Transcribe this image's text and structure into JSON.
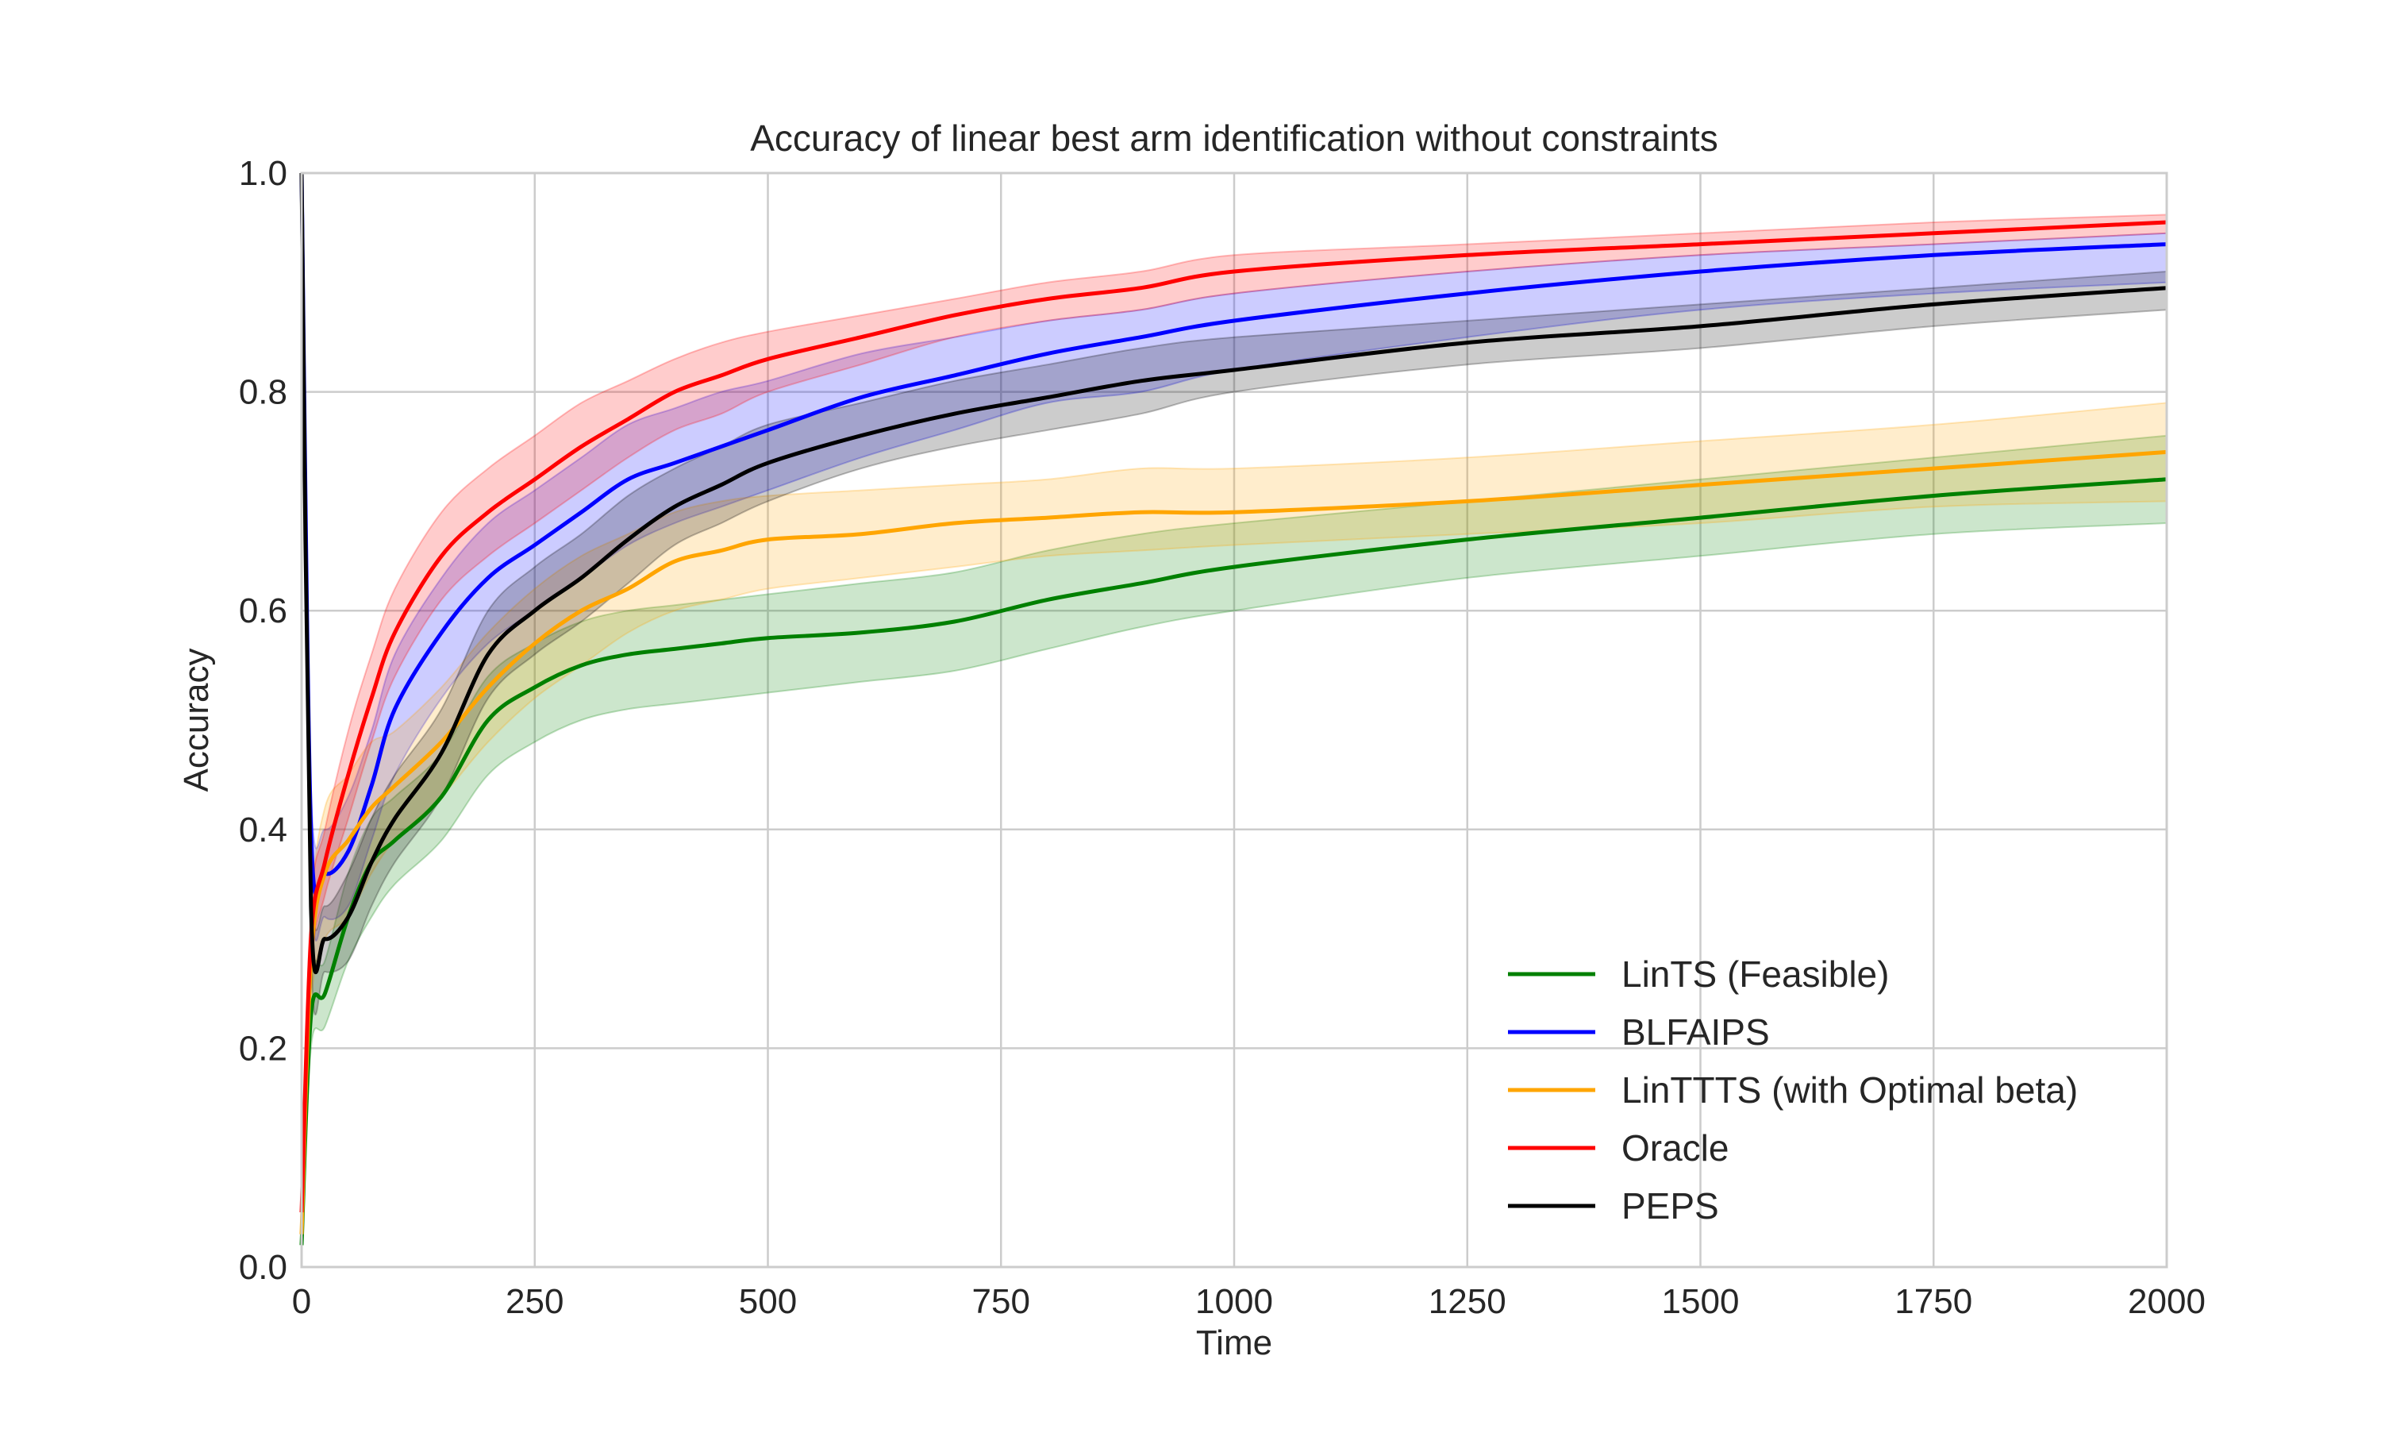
{
  "chart_data": {
    "type": "line",
    "title": "Accuracy of linear best arm identification without constraints",
    "xlabel": "Time",
    "ylabel": "Accuracy",
    "xlim": [
      0,
      2000
    ],
    "ylim": [
      0,
      1.0
    ],
    "xticks": [
      0,
      250,
      500,
      750,
      1000,
      1250,
      1500,
      1750,
      2000
    ],
    "xtick_labels": [
      "0",
      "250",
      "500",
      "750",
      "1000",
      "1250",
      "1500",
      "1750",
      "2000"
    ],
    "yticks": [
      0.0,
      0.2,
      0.4,
      0.6,
      0.8,
      1.0
    ],
    "ytick_labels": [
      "0.0",
      "0.2",
      "0.4",
      "0.6",
      "0.8",
      "1.0"
    ],
    "grid": true,
    "legend_position": "lower-right",
    "x": [
      0,
      10,
      25,
      50,
      75,
      100,
      150,
      200,
      250,
      300,
      350,
      400,
      450,
      500,
      600,
      700,
      800,
      900,
      1000,
      1250,
      1500,
      1750,
      2000
    ],
    "series": [
      {
        "name": "LinTS (Feasible)",
        "color": "#008000",
        "values": [
          0.02,
          0.23,
          0.25,
          0.32,
          0.37,
          0.39,
          0.43,
          0.5,
          0.53,
          0.55,
          0.56,
          0.565,
          0.57,
          0.575,
          0.58,
          0.59,
          0.61,
          0.625,
          0.64,
          0.665,
          0.685,
          0.705,
          0.72
        ],
        "lower": [
          0.01,
          0.2,
          0.22,
          0.28,
          0.32,
          0.35,
          0.39,
          0.45,
          0.48,
          0.5,
          0.51,
          0.515,
          0.52,
          0.525,
          0.535,
          0.545,
          0.565,
          0.585,
          0.6,
          0.63,
          0.65,
          0.67,
          0.68
        ],
        "upper": [
          0.03,
          0.26,
          0.28,
          0.36,
          0.41,
          0.43,
          0.47,
          0.54,
          0.57,
          0.59,
          0.6,
          0.605,
          0.61,
          0.615,
          0.625,
          0.635,
          0.655,
          0.67,
          0.68,
          0.7,
          0.72,
          0.74,
          0.76
        ]
      },
      {
        "name": "BLFAIPS",
        "color": "#0000ff",
        "values": [
          1.0,
          0.4,
          0.36,
          0.38,
          0.44,
          0.51,
          0.58,
          0.63,
          0.66,
          0.69,
          0.72,
          0.735,
          0.75,
          0.765,
          0.795,
          0.815,
          0.835,
          0.85,
          0.865,
          0.89,
          0.91,
          0.925,
          0.935
        ],
        "lower": [
          1.0,
          0.36,
          0.32,
          0.33,
          0.39,
          0.45,
          0.52,
          0.57,
          0.6,
          0.63,
          0.66,
          0.68,
          0.695,
          0.71,
          0.74,
          0.765,
          0.79,
          0.8,
          0.82,
          0.85,
          0.875,
          0.89,
          0.9
        ],
        "upper": [
          1.0,
          0.44,
          0.4,
          0.43,
          0.49,
          0.56,
          0.63,
          0.68,
          0.71,
          0.74,
          0.77,
          0.785,
          0.8,
          0.81,
          0.835,
          0.85,
          0.865,
          0.875,
          0.89,
          0.91,
          0.925,
          0.935,
          0.945
        ]
      },
      {
        "name": "LinTTTS (with Optimal beta)",
        "color": "#ffa500",
        "values": [
          0.03,
          0.28,
          0.36,
          0.39,
          0.42,
          0.44,
          0.48,
          0.53,
          0.57,
          0.6,
          0.62,
          0.645,
          0.655,
          0.665,
          0.67,
          0.68,
          0.685,
          0.69,
          0.69,
          0.7,
          0.715,
          0.73,
          0.745
        ],
        "lower": [
          0.02,
          0.24,
          0.3,
          0.32,
          0.36,
          0.39,
          0.43,
          0.48,
          0.52,
          0.55,
          0.58,
          0.6,
          0.61,
          0.62,
          0.63,
          0.64,
          0.65,
          0.655,
          0.66,
          0.67,
          0.68,
          0.695,
          0.7
        ],
        "upper": [
          0.04,
          0.32,
          0.42,
          0.45,
          0.48,
          0.49,
          0.53,
          0.58,
          0.62,
          0.65,
          0.67,
          0.69,
          0.7,
          0.705,
          0.71,
          0.715,
          0.72,
          0.73,
          0.73,
          0.74,
          0.755,
          0.77,
          0.79
        ]
      },
      {
        "name": "Oracle",
        "color": "#ff0000",
        "values": [
          0.05,
          0.3,
          0.37,
          0.45,
          0.52,
          0.58,
          0.65,
          0.69,
          0.72,
          0.75,
          0.775,
          0.8,
          0.815,
          0.83,
          0.85,
          0.87,
          0.885,
          0.895,
          0.91,
          0.925,
          0.935,
          0.945,
          0.955
        ],
        "lower": [
          0.04,
          0.27,
          0.34,
          0.41,
          0.48,
          0.54,
          0.61,
          0.65,
          0.68,
          0.71,
          0.74,
          0.765,
          0.78,
          0.8,
          0.825,
          0.85,
          0.865,
          0.875,
          0.89,
          0.91,
          0.925,
          0.935,
          0.945
        ],
        "upper": [
          0.06,
          0.33,
          0.4,
          0.49,
          0.56,
          0.62,
          0.69,
          0.73,
          0.76,
          0.79,
          0.81,
          0.83,
          0.845,
          0.855,
          0.87,
          0.885,
          0.9,
          0.91,
          0.925,
          0.935,
          0.945,
          0.955,
          0.962
        ]
      },
      {
        "name": "PEPS",
        "color": "#000000",
        "values": [
          1.0,
          0.33,
          0.3,
          0.32,
          0.37,
          0.41,
          0.47,
          0.56,
          0.6,
          0.63,
          0.665,
          0.695,
          0.715,
          0.735,
          0.76,
          0.78,
          0.795,
          0.81,
          0.82,
          0.845,
          0.86,
          0.88,
          0.895
        ],
        "lower": [
          1.0,
          0.29,
          0.27,
          0.28,
          0.33,
          0.37,
          0.43,
          0.52,
          0.56,
          0.59,
          0.625,
          0.66,
          0.68,
          0.7,
          0.73,
          0.75,
          0.765,
          0.78,
          0.8,
          0.825,
          0.84,
          0.86,
          0.875
        ],
        "upper": [
          1.0,
          0.37,
          0.33,
          0.36,
          0.41,
          0.45,
          0.51,
          0.6,
          0.64,
          0.67,
          0.705,
          0.73,
          0.75,
          0.77,
          0.79,
          0.81,
          0.825,
          0.84,
          0.85,
          0.865,
          0.88,
          0.895,
          0.91
        ]
      }
    ],
    "band_opacity": 0.2
  }
}
